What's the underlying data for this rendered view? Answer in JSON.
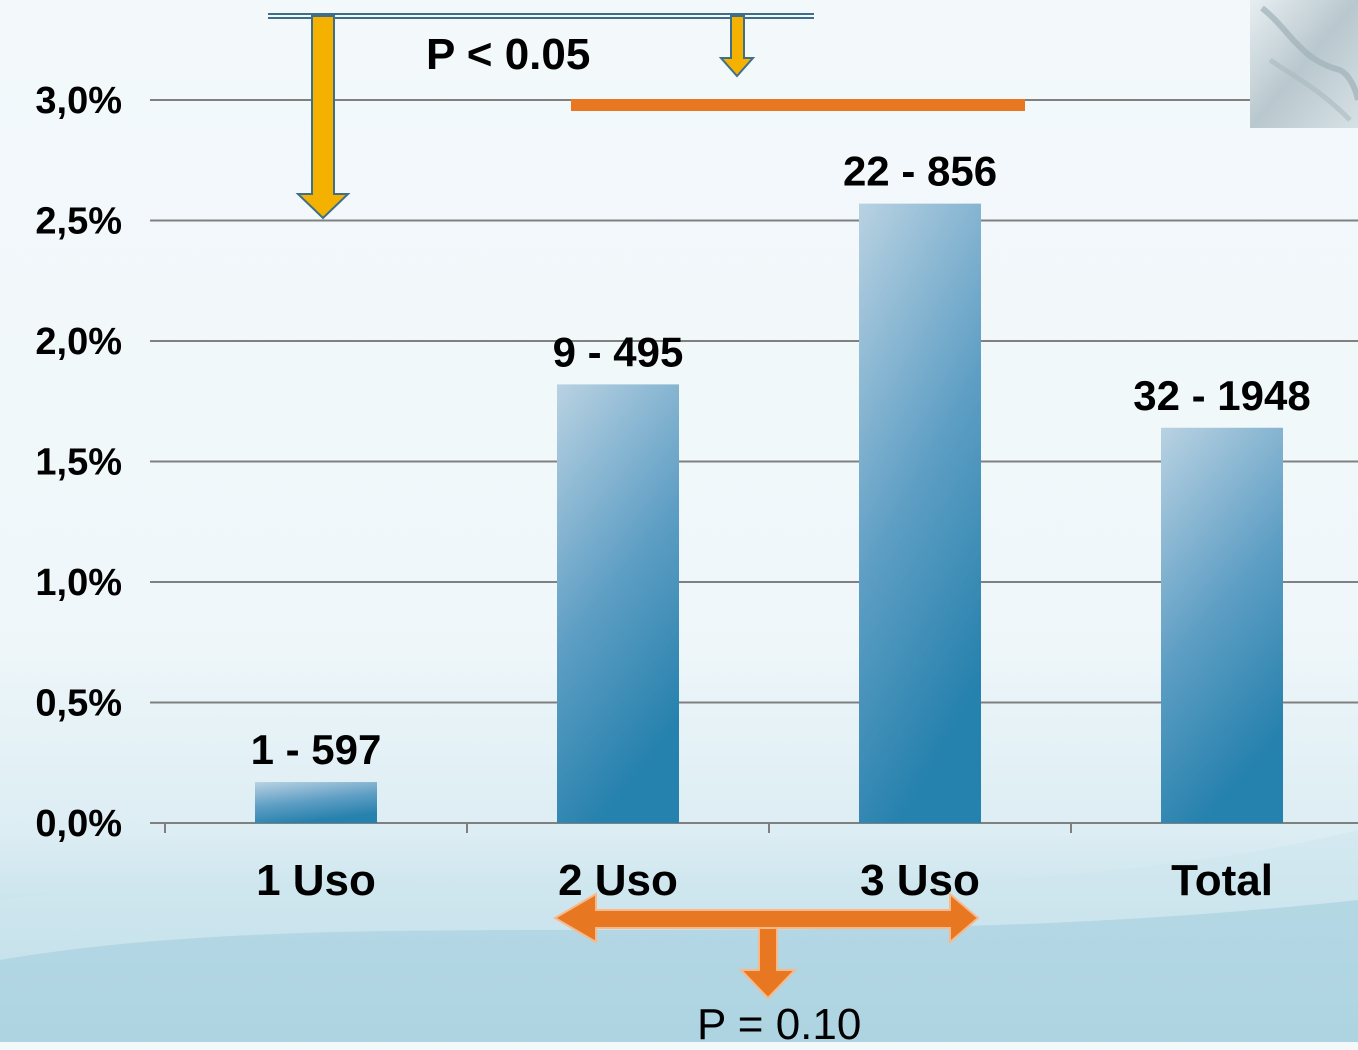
{
  "chart_data": {
    "type": "bar",
    "categories": [
      "1 Uso",
      "2 Uso",
      "3 Uso",
      "Total"
    ],
    "values": [
      0.17,
      1.82,
      2.57,
      1.64
    ],
    "data_labels": [
      "1 - 597",
      "9 - 495",
      "22 - 856",
      "32 - 1948"
    ],
    "y_ticks": [
      "0,0%",
      "0,5%",
      "1,0%",
      "1,5%",
      "2,0%",
      "2,5%",
      "3,0%"
    ],
    "ylim": [
      0,
      3.0
    ],
    "grid": true,
    "bar_color": "#2e86b0",
    "annotations": {
      "significance_top": "P < 0.05",
      "significance_bottom": "P  = 0.10"
    }
  },
  "colors": {
    "yellow_arrow": "#f5b100",
    "orange": "#e87722",
    "gridline": "#808080"
  }
}
